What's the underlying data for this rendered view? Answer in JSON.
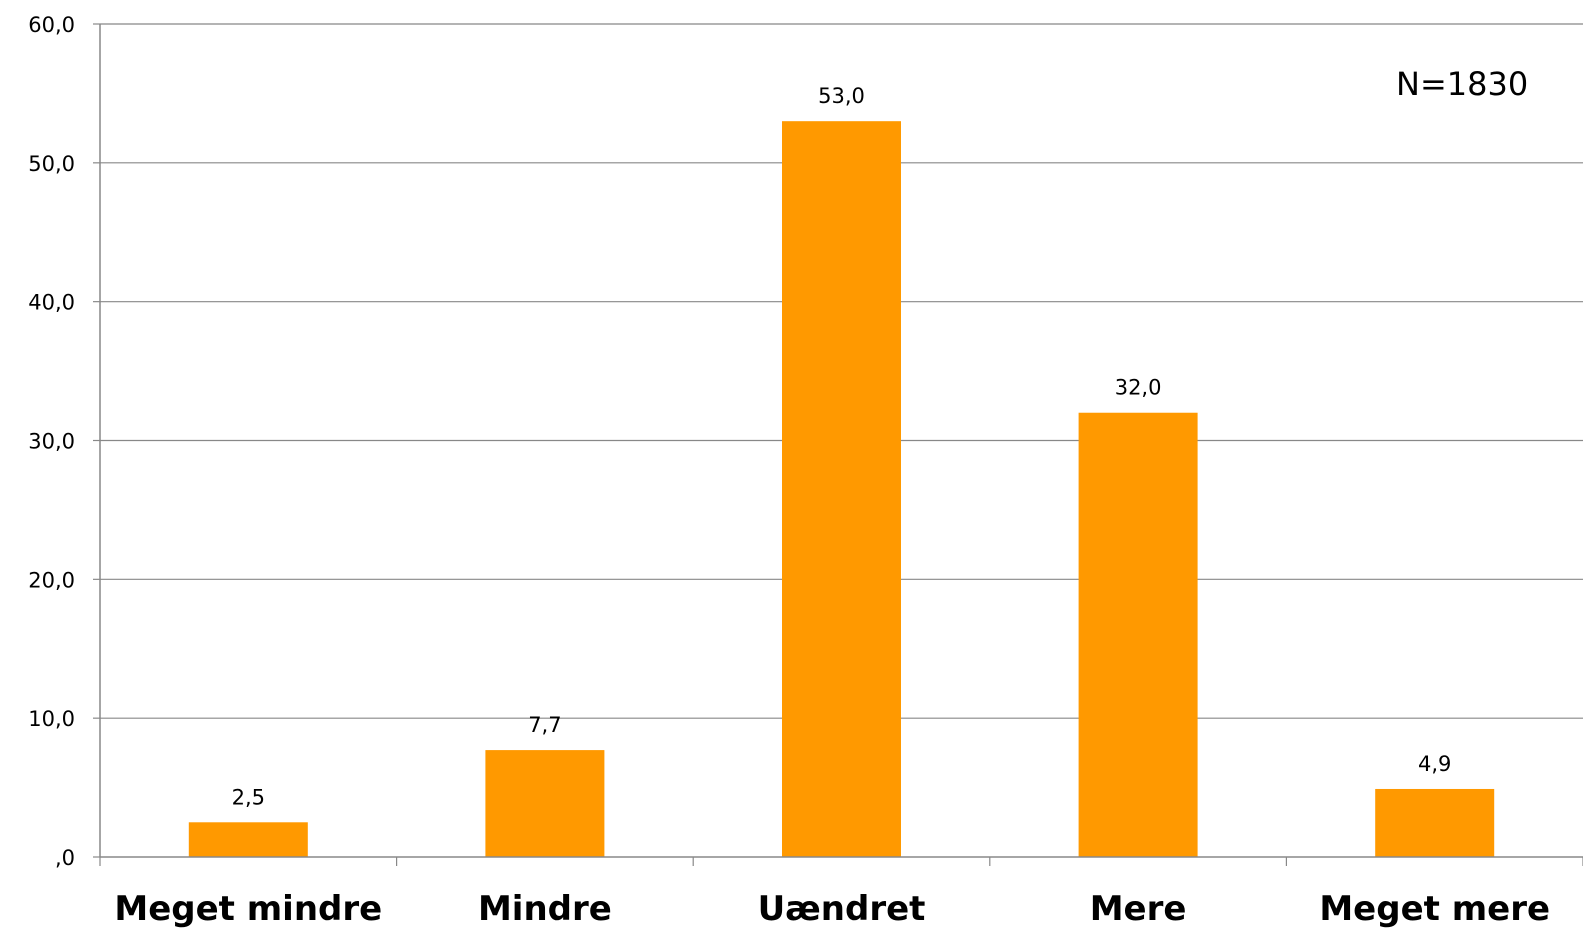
{
  "chart_data": {
    "type": "bar",
    "categories": [
      "Meget mindre",
      "Mindre",
      "Uændret",
      "Mere",
      "Meget mere"
    ],
    "values": [
      2.5,
      7.7,
      53.0,
      32.0,
      4.9
    ],
    "data_labels": [
      "2,5",
      "7,7",
      "53,0",
      "32,0",
      "4,9"
    ],
    "ylim": [
      0,
      60
    ],
    "yticks": [
      0,
      10,
      20,
      30,
      40,
      50,
      60
    ],
    "ytick_labels": [
      ",0",
      "10,0",
      "20,0",
      "30,0",
      "40,0",
      "50,0",
      "60,0"
    ],
    "grid": true,
    "legend": "none",
    "annotation": "N=1830",
    "bar_color": "#FF9900",
    "grid_color": "#888888"
  }
}
